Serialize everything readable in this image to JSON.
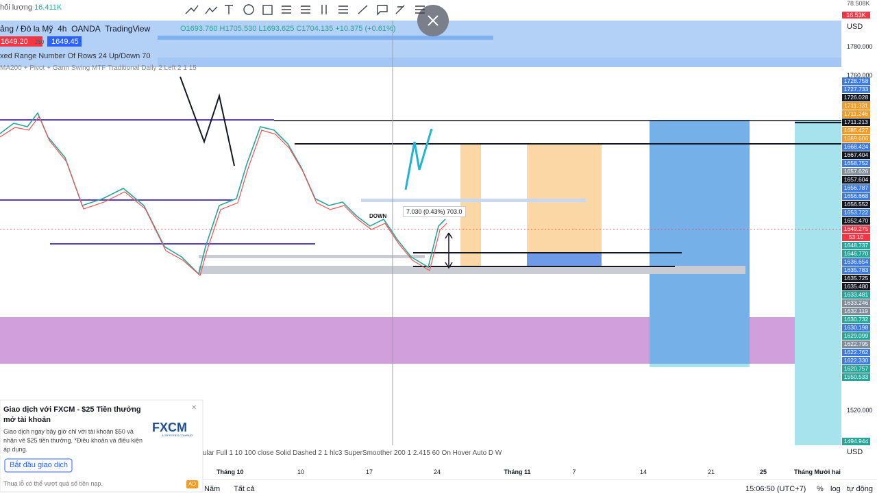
{
  "header": {
    "volume_label": "hối lượng",
    "volume_value": "16.411K",
    "symbol": "ảng / Đô la Mỹ",
    "interval": "4h",
    "broker": "OANDA",
    "source": "TradingView",
    "ohlc": {
      "open": "O1693.760",
      "high": "H1705.530",
      "low": "L1693.625",
      "close": "C1704.135",
      "change": "+10.375 (+0.61%)"
    }
  },
  "trade": {
    "sell": "1649.20",
    "spread": "250",
    "buy": "1649.45"
  },
  "indicators": [
    "xed Range Number Of Rows 24 Up/Down 70",
    "MA200 + Pivot + Gann Swing MTF Traditional Daily 2 Left 2 1 15",
    "ular Full 1 10 100 close Solid Dashed 2 1 hlc3 SuperSmoother 200 1 2.415 60 On Hover Auto D W"
  ],
  "measure": {
    "label": "7.030 (0.43%) 703.0",
    "signal": "DOWN"
  },
  "price_axis": {
    "currency": "USD",
    "top_labels": [
      "78.508K",
      "16.53K"
    ],
    "scale": [
      "1780.000",
      "1760.000",
      "1520.000"
    ],
    "markers": [
      {
        "text": "1728.758",
        "color": "#3d7be0"
      },
      {
        "text": "1727.733",
        "color": "#3d7be0"
      },
      {
        "text": "1726.028",
        "color": "#131722"
      },
      {
        "text": "1711.331",
        "color": "#f59a23"
      },
      {
        "text": "1711.246",
        "color": "#f59a23"
      },
      {
        "text": "1711.213",
        "color": "#131722"
      },
      {
        "text": "1685.427",
        "color": "#f59a23"
      },
      {
        "text": "1669.606",
        "color": "#f59a23"
      },
      {
        "text": "1668.424",
        "color": "#3d7be0"
      },
      {
        "text": "1667.404",
        "color": "#131722"
      },
      {
        "text": "1658.752",
        "color": "#3d7be0"
      },
      {
        "text": "1657.626",
        "color": "#7f8c9a"
      },
      {
        "text": "1657.604",
        "color": "#131722"
      },
      {
        "text": "1656.787",
        "color": "#3d7be0"
      },
      {
        "text": "1656.668",
        "color": "#3d7be0"
      },
      {
        "text": "1656.552",
        "color": "#131722"
      },
      {
        "text": "1653.722",
        "color": "#3d7be0"
      },
      {
        "text": "1652.470",
        "color": "#131722"
      },
      {
        "text": "1649.275",
        "color": "#f23645"
      },
      {
        "text": "53:10",
        "color": "#f23645"
      },
      {
        "text": "1648.737",
        "color": "#26a69a"
      },
      {
        "text": "1646.770",
        "color": "#26a69a"
      },
      {
        "text": "1636.654",
        "color": "#3d7be0"
      },
      {
        "text": "1635.783",
        "color": "#3d7be0"
      },
      {
        "text": "1635.725",
        "color": "#131722"
      },
      {
        "text": "1635.480",
        "color": "#131722"
      },
      {
        "text": "1633.481",
        "color": "#26a69a"
      },
      {
        "text": "1633.246",
        "color": "#7f8c9a"
      },
      {
        "text": "1632.119",
        "color": "#7f8c9a"
      },
      {
        "text": "1630.732",
        "color": "#26a69a"
      },
      {
        "text": "1630.198",
        "color": "#3d7be0"
      },
      {
        "text": "1629.099",
        "color": "#26a69a"
      },
      {
        "text": "1622.795",
        "color": "#7f8c9a"
      },
      {
        "text": "1622.762",
        "color": "#3d7be0"
      },
      {
        "text": "1622.330",
        "color": "#3d7be0"
      },
      {
        "text": "1620.757",
        "color": "#26a69a"
      },
      {
        "text": "1550.533",
        "color": "#26a69a"
      }
    ],
    "last": {
      "text": "1494.944",
      "color": "#26a69a"
    }
  },
  "time_axis": [
    "Tháng 10",
    "10",
    "17",
    "24",
    "Tháng 11",
    "7",
    "14",
    "21",
    "25",
    "Tháng Mười hai"
  ],
  "bottom_bar": {
    "ranges": [
      "Năm",
      "Tất cả"
    ],
    "clock": "15:06:50 (UTC+7)",
    "percent": "%",
    "log": "log",
    "auto": "tự động"
  },
  "ad": {
    "title": "Giao dịch với FXCM - $25 Tiền thưởng mở tài khoản",
    "body": "Giao dịch ngay bây giờ chỉ với tài khoản $50 và nhận về $25 tiền thưởng. *Điều khoản và điều kiện áp dụng.",
    "button": "Bắt đầu giao dịch",
    "footnote": "Thua lỗ có thể vượt quá số tiền nạp.",
    "badge": "AD",
    "logo": "FXCM",
    "logo_sub": "A JEFFERIES COMPANY"
  }
}
